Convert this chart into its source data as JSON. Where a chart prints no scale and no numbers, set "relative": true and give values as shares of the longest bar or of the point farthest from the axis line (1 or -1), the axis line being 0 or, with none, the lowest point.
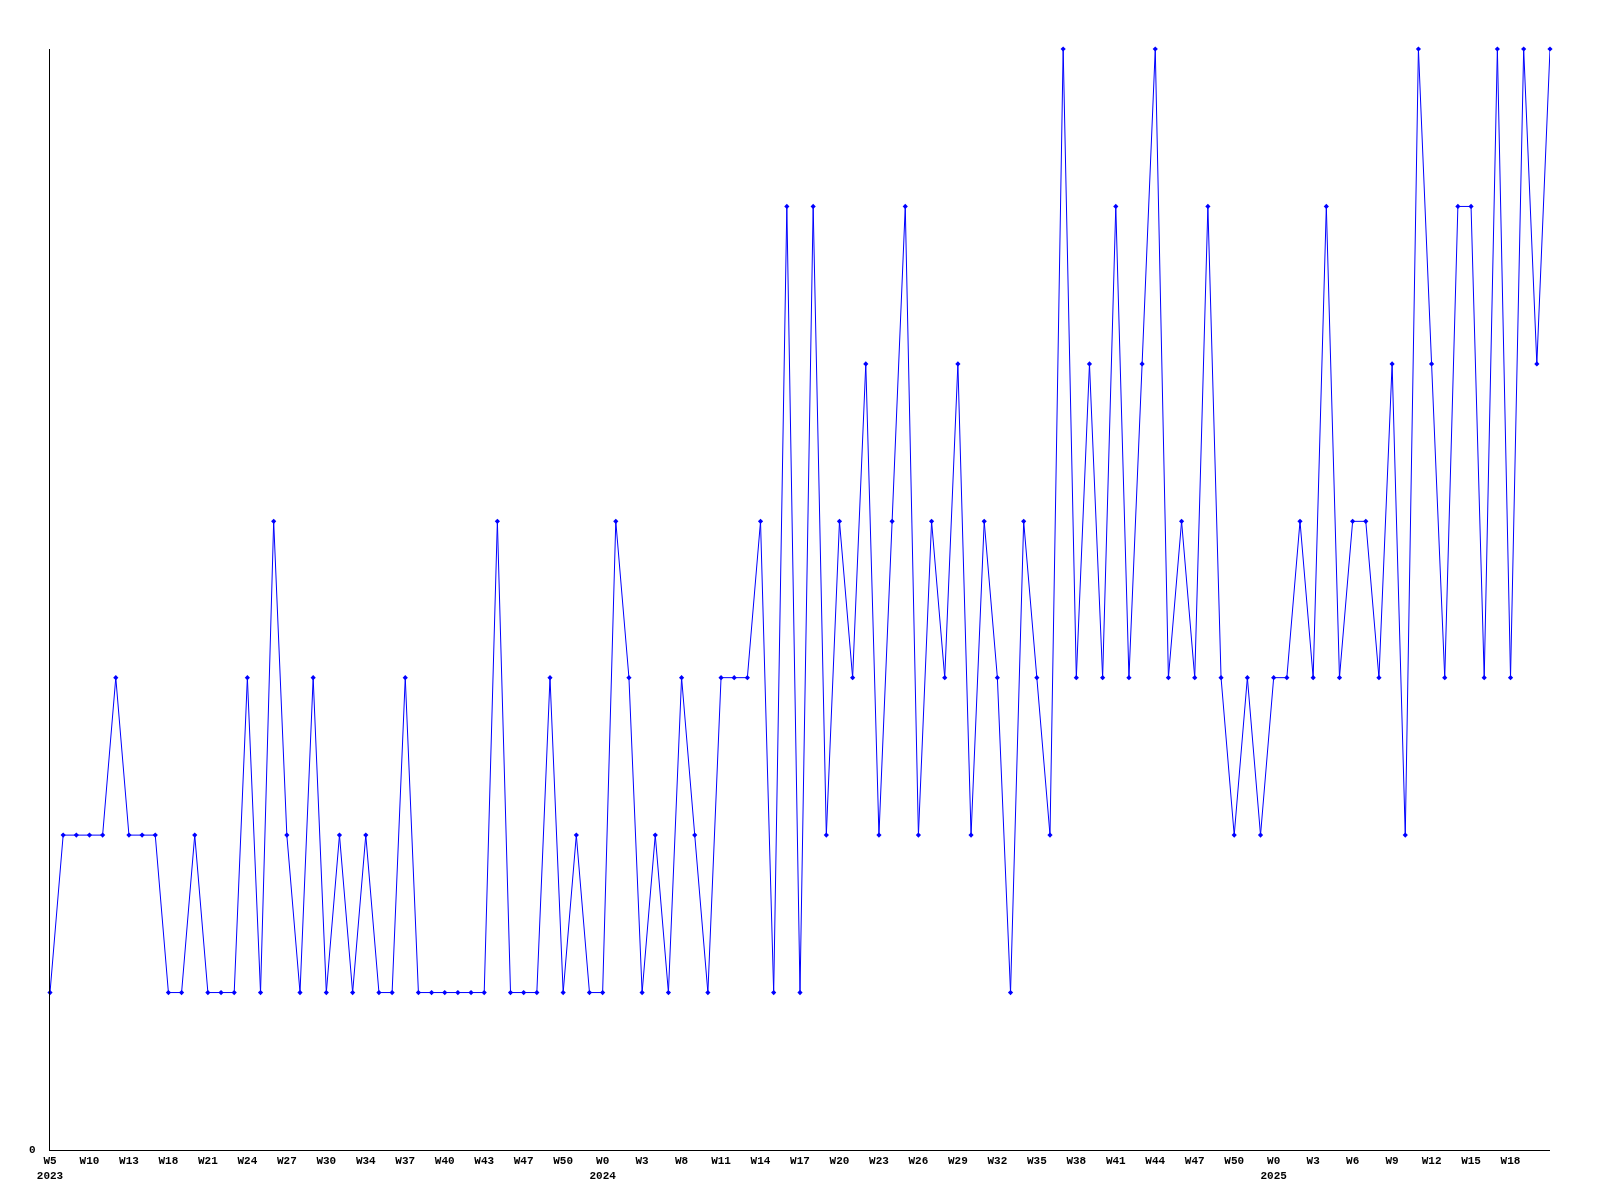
{
  "chart_data": {
    "type": "line",
    "relative": true,
    "marker": "diamond",
    "line_style": "solid",
    "annotations": [
      "0"
    ],
    "categories": [
      "W5\n2023",
      null,
      null,
      "W10",
      null,
      null,
      "W13",
      null,
      null,
      "W18",
      null,
      null,
      "W21",
      null,
      null,
      "W24",
      null,
      null,
      "W27",
      null,
      null,
      "W30",
      null,
      null,
      "W34",
      null,
      null,
      "W37",
      null,
      null,
      "W40",
      null,
      null,
      "W43",
      null,
      null,
      "W47",
      null,
      null,
      "W50",
      null,
      null,
      "W0\n2024",
      null,
      null,
      "W3",
      null,
      null,
      "W8",
      null,
      null,
      "W11",
      null,
      null,
      "W14",
      null,
      null,
      "W17",
      null,
      null,
      "W20",
      null,
      null,
      "W23",
      null,
      null,
      "W26",
      null,
      null,
      "W29",
      null,
      null,
      "W32",
      null,
      null,
      "W35",
      null,
      null,
      "W38",
      null,
      null,
      "W41",
      null,
      null,
      "W44",
      null,
      null,
      "W47",
      null,
      null,
      "W50",
      null,
      null,
      "W0\n2025",
      null,
      null,
      "W3",
      null,
      null,
      "W6",
      null,
      null,
      "W9",
      null,
      null,
      "W12",
      null,
      null,
      "W15",
      null,
      null,
      "W18",
      null,
      null,
      null
    ],
    "series": [
      {
        "color": "#0000ff",
        "values": [
          0.143,
          0.286,
          0.286,
          0.286,
          0.286,
          0.429,
          0.286,
          0.286,
          0.286,
          0.143,
          0.143,
          0.286,
          0.143,
          0.143,
          0.143,
          0.429,
          0.143,
          0.571,
          0.286,
          0.143,
          0.429,
          0.143,
          0.286,
          0.143,
          0.286,
          0.143,
          0.143,
          0.429,
          0.143,
          0.143,
          0.143,
          0.143,
          0.143,
          0.143,
          0.571,
          0.143,
          0.143,
          0.143,
          0.429,
          0.143,
          0.286,
          0.143,
          0.143,
          0.571,
          0.429,
          0.143,
          0.286,
          0.143,
          0.429,
          0.286,
          0.143,
          0.429,
          0.429,
          0.429,
          0.571,
          0.143,
          0.857,
          0.143,
          0.857,
          0.286,
          0.571,
          0.429,
          0.714,
          0.286,
          0.571,
          0.857,
          0.286,
          0.571,
          0.429,
          0.714,
          0.286,
          0.571,
          0.429,
          0.143,
          0.571,
          0.429,
          0.286,
          1,
          0.429,
          0.714,
          0.429,
          0.857,
          0.429,
          0.714,
          1,
          0.429,
          0.571,
          0.429,
          0.857,
          0.429,
          0.286,
          0.429,
          0.286,
          0.429,
          0.429,
          0.571,
          0.429,
          0.857,
          0.429,
          0.571,
          0.571,
          0.429,
          0.714,
          0.286,
          1,
          0.714,
          0.429,
          0.857,
          0.857,
          0.429,
          1,
          0.429,
          1,
          0.714,
          1
        ]
      }
    ]
  }
}
